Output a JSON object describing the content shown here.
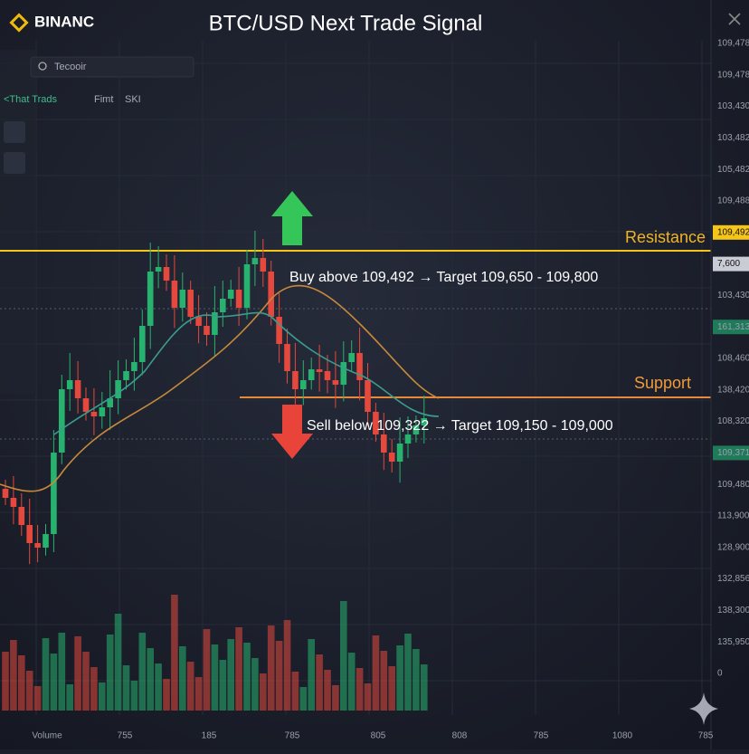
{
  "header": {
    "logo": "BINANC",
    "title": "BTC/USD  Next Trade Signal"
  },
  "sidebar": {
    "search": "Tecooir",
    "tabs": [
      "<That Trads",
      "Fimt",
      "SKI"
    ]
  },
  "annotations": {
    "resistance": "Resistance",
    "support": "Support",
    "buy": "Buy above 109,492 → Target 109,650 - 109,800",
    "sell": "Sell below 109,322 → Target 109,150 - 109,000"
  },
  "price_axis": [
    "109,478",
    "109,478",
    "103,430",
    "103,482",
    "105,482",
    "109,488",
    "109,492",
    "7,600",
    "103,430",
    "161,313",
    "108,460",
    "138,420",
    "108,320",
    "109,371",
    "109,480",
    "113,900",
    "128,900",
    "132,856",
    "138,300",
    "135,950",
    "0"
  ],
  "time_axis": [
    "Volume",
    "755",
    "185",
    "785",
    "805",
    "808",
    "785",
    "1080",
    "785"
  ]
}
